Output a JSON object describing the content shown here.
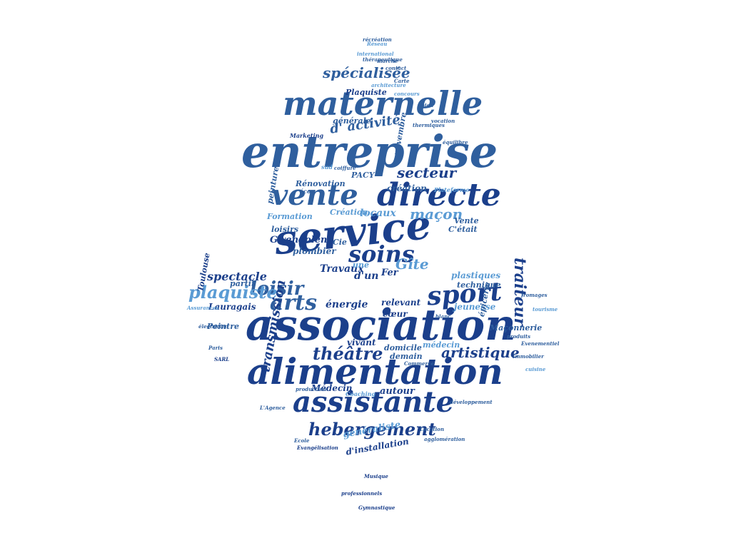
{
  "palette": {
    "dark": "#1b3f8b",
    "mid": "#2f6db5",
    "light": "#5a9bd4",
    "pale": "#8ec0ea"
  },
  "words": {
    "entreprise": "entreprise",
    "service": "service",
    "association": "association",
    "alimentation": "alimentation",
    "maternelle": "maternelle",
    "vente": "vente",
    "directe": "directe",
    "assistante": "assistante",
    "sport": "sport",
    "soins": "soins",
    "arts": "arts",
    "loisir": "loisir",
    "plaquiste": "plaquiste",
    "hebergement": "hebergement",
    "theatre": "théâtre",
    "artistique": "artistique",
    "traiteur": "traiteur",
    "specialisee": "spécialisée",
    "activite": "d' activité",
    "secteur": "secteur",
    "macon": "maçon",
    "gite": "Gîte",
    "spectacle": "spectacle",
    "transmission": "transmission",
    "travaux": "Travaux",
    "renovation": "Rénovation",
    "plombier": "plombier",
    "gwendolen": "Gwendolen",
    "cie": "Cie",
    "formation": "Formation",
    "creation": "création",
    "creation2": "Création",
    "locaux": "locaux",
    "vente2": "Vente",
    "cetait": "C'était",
    "loisirs": "loisirs",
    "energie": "énergie",
    "relevant": "relevant",
    "vivant": "vivant",
    "coeur": "cœur",
    "domicile": "domicile",
    "medecin": "médecin",
    "medecin2": "Médecin",
    "generaliste": "généraliste",
    "autour": "autour",
    "demain": "demain",
    "installation": "d'installation",
    "jeunesse": "jeunesse",
    "maconnerie": "Maçonnerie",
    "plastiques": "plastiques",
    "technique": "technique",
    "lauragais": "Lauragais",
    "peintre": "Peintre",
    "partir": "partir",
    "toulouse": "Toulouse",
    "plaquiste2": "Plaquiste",
    "generale": "générale",
    "novembre": "novembre",
    "peinture": "peinture",
    "fer": "Fer",
    "dun": "d'un",
    "une": "une",
    "epicerie": "épicerie",
    "sud": "sud",
    "pacy": "PACY",
    "plateforme": "Plateforme",
    "eco": "éco",
    "coiffure": "coiffure",
    "marketing": "Marketing",
    "reseau": "Réseau",
    "marche": "marché",
    "architecture": "architecture",
    "evenementiel": "Evenementiel",
    "immobilier": "Immobilier",
    "cuisine": "cuisine",
    "coaching": "Coaching",
    "agence": "L'Agence",
    "ecole": "Ecole",
    "evangelisation": "Evangélisation",
    "location": "Location",
    "commerce": "Commerce",
    "production": "production",
    "musique": "Musique",
    "agglomeration": "agglomération",
    "professionnels": "professionnels",
    "gymnastique": "Gymnastique",
    "recreation": "récréation",
    "international": "international",
    "therapeutique": "thérapeutique",
    "contact": "contact",
    "equilibre": "équilibre",
    "carte": "Carte",
    "concours": "concours",
    "bien": "bien",
    "assurances": "Assurances",
    "electricien": "électricien",
    "paris": "Paris",
    "sarl": "SARL",
    "vocation": "vocation",
    "thermiques": "thermiques",
    "fromages": "fromages",
    "tourisme": "tourisme",
    "developpement": "développement",
    "produits": "produits",
    "blanc": "blanc"
  }
}
